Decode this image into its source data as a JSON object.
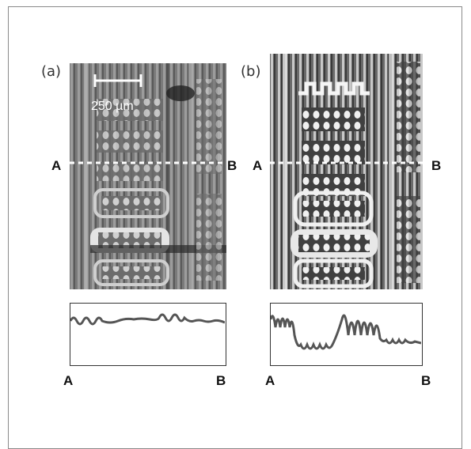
{
  "panels": [
    {
      "id": "a",
      "label": "(a)"
    },
    {
      "id": "b",
      "label": "(b)"
    }
  ],
  "scale_bar": {
    "label": "250 µm"
  },
  "points": {
    "start": "A",
    "end": "B"
  },
  "colors": {
    "line_profile": "#555555",
    "cut_line": "#ffffff",
    "frame": "#8a8a8a"
  }
}
